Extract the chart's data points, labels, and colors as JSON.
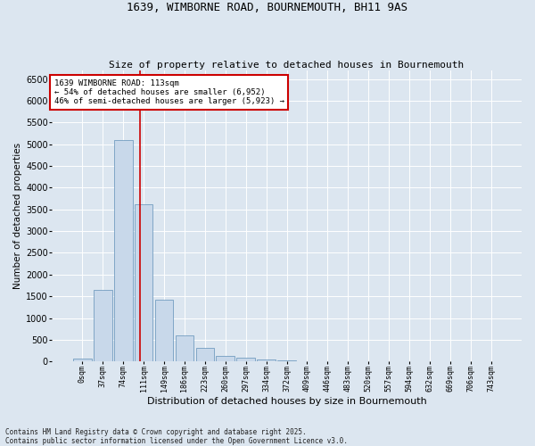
{
  "title1": "1639, WIMBORNE ROAD, BOURNEMOUTH, BH11 9AS",
  "title2": "Size of property relative to detached houses in Bournemouth",
  "xlabel": "Distribution of detached houses by size in Bournemouth",
  "ylabel": "Number of detached properties",
  "footer1": "Contains HM Land Registry data © Crown copyright and database right 2025.",
  "footer2": "Contains public sector information licensed under the Open Government Licence v3.0.",
  "bin_labels": [
    "0sqm",
    "37sqm",
    "74sqm",
    "111sqm",
    "149sqm",
    "186sqm",
    "223sqm",
    "260sqm",
    "297sqm",
    "334sqm",
    "372sqm",
    "409sqm",
    "446sqm",
    "483sqm",
    "520sqm",
    "557sqm",
    "594sqm",
    "632sqm",
    "669sqm",
    "706sqm",
    "743sqm"
  ],
  "bar_values": [
    70,
    1640,
    5100,
    3620,
    1420,
    610,
    310,
    130,
    80,
    50,
    30,
    10,
    5,
    3,
    2,
    1,
    0,
    0,
    0,
    0,
    0
  ],
  "bar_color": "#c8d8ea",
  "bar_edge_color": "#6090b8",
  "vline_x": 2.82,
  "vline_color": "#cc0000",
  "annotation_title": "1639 WIMBORNE ROAD: 113sqm",
  "annotation_line2": "← 54% of detached houses are smaller (6,952)",
  "annotation_line3": "46% of semi-detached houses are larger (5,923) →",
  "annotation_box_color": "#cc0000",
  "ylim": [
    0,
    6700
  ],
  "yticks": [
    0,
    500,
    1000,
    1500,
    2000,
    2500,
    3000,
    3500,
    4000,
    4500,
    5000,
    5500,
    6000,
    6500
  ],
  "background_color": "#dce6f0",
  "plot_bg_color": "#dce6f0",
  "grid_color": "#ffffff",
  "title_fontsize": 9,
  "subtitle_fontsize": 8,
  "ylabel_fontsize": 7.5,
  "xlabel_fontsize": 8,
  "ytick_fontsize": 7,
  "xtick_fontsize": 6,
  "footer_fontsize": 5.5
}
